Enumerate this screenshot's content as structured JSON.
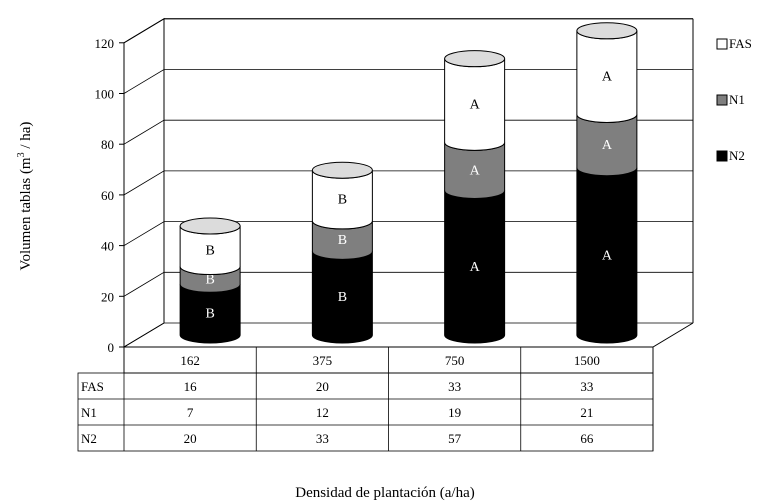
{
  "chart_data": {
    "type": "bar",
    "stacked": true,
    "three_d": true,
    "categories": [
      "162",
      "375",
      "750",
      "1500"
    ],
    "series": [
      {
        "name": "N2",
        "values": [
          20,
          33,
          57,
          66
        ],
        "letters": [
          "B",
          "B",
          "A",
          "A"
        ],
        "color": "#000000",
        "label_color": "#ffffff"
      },
      {
        "name": "N1",
        "values": [
          7,
          12,
          19,
          21
        ],
        "letters": [
          "B",
          "B",
          "A",
          "A"
        ],
        "color": "#7f7f7f",
        "label_color": "#ffffff"
      },
      {
        "name": "FAS",
        "values": [
          16,
          20,
          33,
          33
        ],
        "letters": [
          "B",
          "B",
          "A",
          "A"
        ],
        "color": "#ffffff",
        "label_color": "#000000"
      }
    ],
    "legend_order": [
      "FAS",
      "N1",
      "N2"
    ],
    "legend_position": "right",
    "ylim": [
      0,
      120
    ],
    "yticks": [
      0,
      20,
      40,
      60,
      80,
      100,
      120
    ],
    "ylabel_main": "Volumen tablas (m",
    "ylabel_sup": "3",
    "ylabel_end": " / ha)",
    "xlabel": "Densidad de plantación (a/ha)",
    "grid": true,
    "data_table": true
  }
}
